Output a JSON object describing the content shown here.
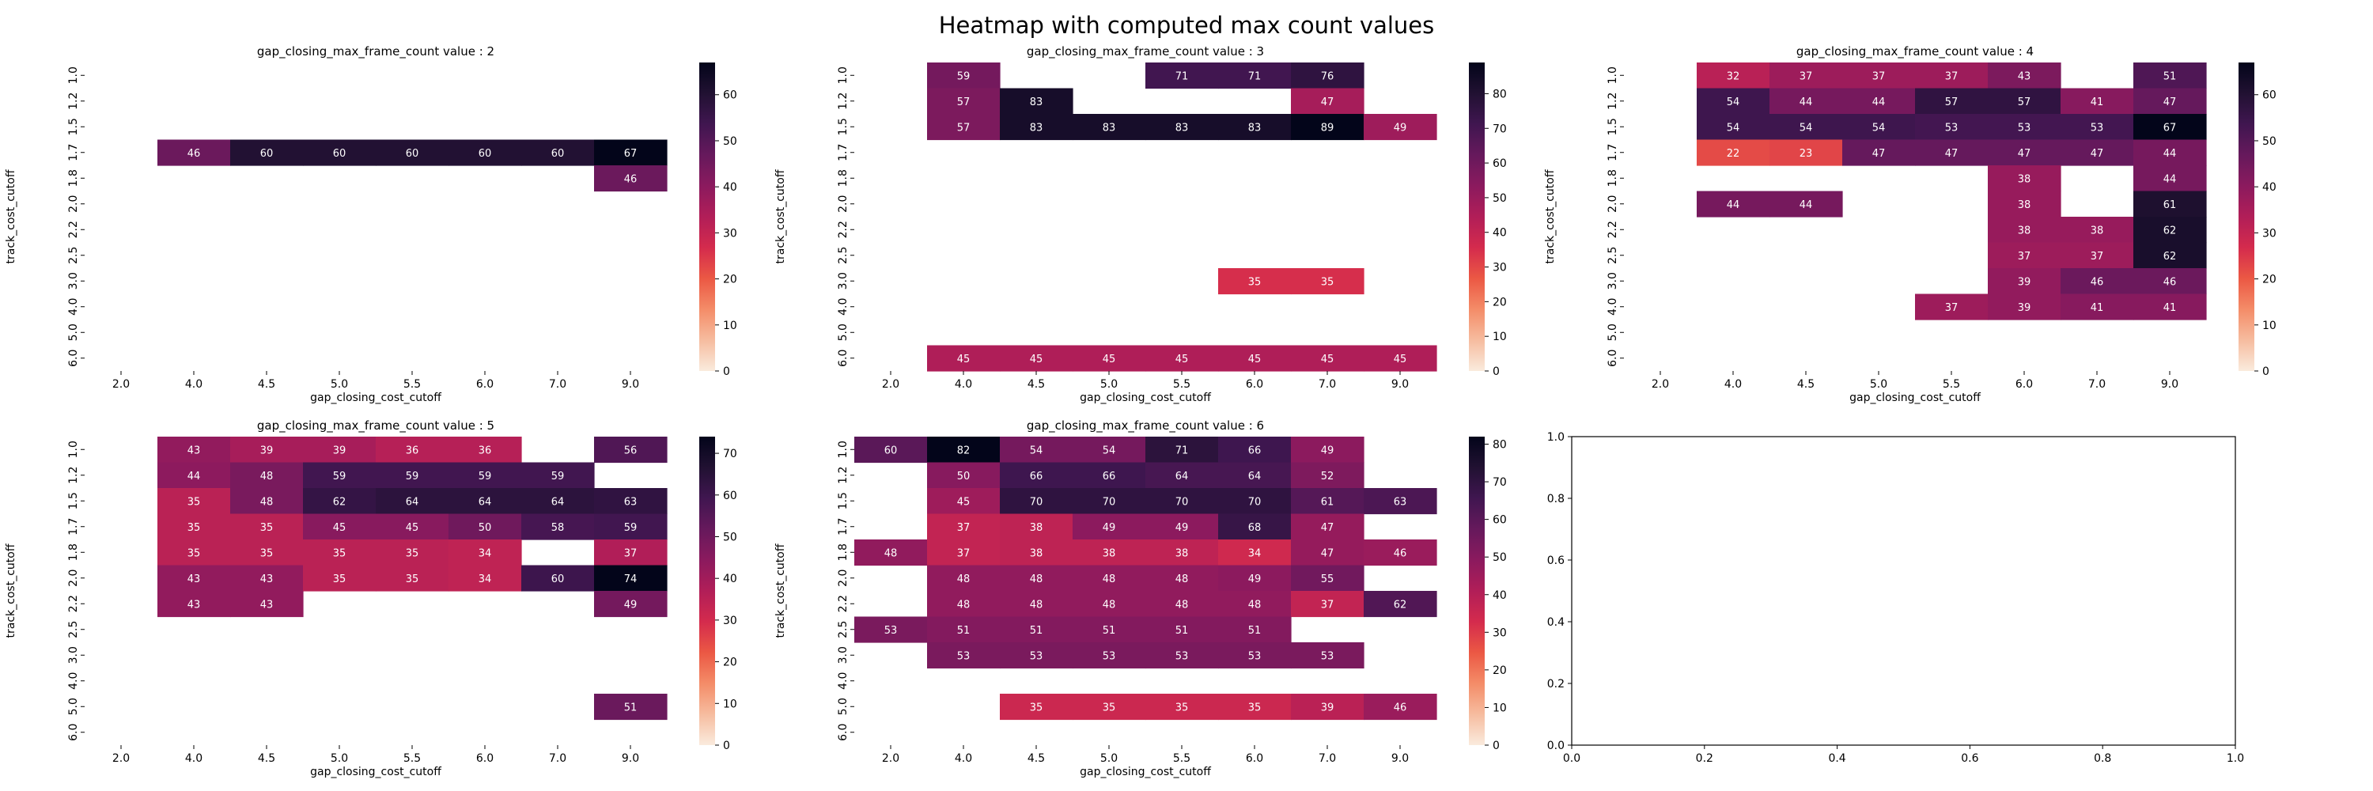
{
  "figure_title": "Heatmap with computed max count values",
  "chart_data": [
    {
      "type": "heatmap",
      "title": "gap_closing_max_frame_count value : 2",
      "xlabel": "gap_closing_cost_cutoff",
      "ylabel": "track_cost_cutoff",
      "x_ticks": [
        "2.0",
        "4.0",
        "4.5",
        "5.0",
        "5.5",
        "6.0",
        "7.0",
        "9.0"
      ],
      "y_ticks": [
        "1.0",
        "1.2",
        "1.5",
        "1.7",
        "1.8",
        "2.0",
        "2.2",
        "2.5",
        "3.0",
        "4.0",
        "5.0",
        "6.0"
      ],
      "colorbar_ticks": [
        0,
        10,
        20,
        30,
        40,
        50,
        60
      ],
      "vmin": 0,
      "vmax": 67,
      "values": [
        [
          null,
          null,
          null,
          null,
          null,
          null,
          null,
          null
        ],
        [
          null,
          null,
          null,
          null,
          null,
          null,
          null,
          null
        ],
        [
          null,
          null,
          null,
          null,
          null,
          null,
          null,
          null
        ],
        [
          null,
          46,
          60,
          60,
          60,
          60,
          60,
          67
        ],
        [
          null,
          null,
          null,
          null,
          null,
          null,
          null,
          46
        ],
        [
          null,
          null,
          null,
          null,
          null,
          null,
          null,
          null
        ],
        [
          null,
          null,
          null,
          null,
          null,
          null,
          null,
          null
        ],
        [
          null,
          null,
          null,
          null,
          null,
          null,
          null,
          null
        ],
        [
          null,
          null,
          null,
          null,
          null,
          null,
          null,
          null
        ],
        [
          null,
          null,
          null,
          null,
          null,
          null,
          null,
          null
        ],
        [
          null,
          null,
          null,
          null,
          null,
          null,
          null,
          null
        ],
        [
          null,
          null,
          null,
          null,
          null,
          null,
          null,
          null
        ]
      ]
    },
    {
      "type": "heatmap",
      "title": "gap_closing_max_frame_count value : 3",
      "xlabel": "gap_closing_cost_cutoff",
      "ylabel": "track_cost_cutoff",
      "x_ticks": [
        "2.0",
        "4.0",
        "4.5",
        "5.0",
        "5.5",
        "6.0",
        "7.0",
        "9.0"
      ],
      "y_ticks": [
        "1.0",
        "1.2",
        "1.5",
        "1.7",
        "1.8",
        "2.0",
        "2.2",
        "2.5",
        "3.0",
        "4.0",
        "5.0",
        "6.0"
      ],
      "colorbar_ticks": [
        0,
        10,
        20,
        30,
        40,
        50,
        60,
        70,
        80
      ],
      "vmin": 0,
      "vmax": 89,
      "values": [
        [
          null,
          59,
          null,
          null,
          71,
          71,
          76,
          null
        ],
        [
          null,
          57,
          83,
          null,
          null,
          null,
          47,
          null
        ],
        [
          null,
          57,
          83,
          83,
          83,
          83,
          89,
          49
        ],
        [
          null,
          null,
          null,
          null,
          null,
          null,
          null,
          null
        ],
        [
          null,
          null,
          null,
          null,
          null,
          null,
          null,
          null
        ],
        [
          null,
          null,
          null,
          null,
          null,
          null,
          null,
          null
        ],
        [
          null,
          null,
          null,
          null,
          null,
          null,
          null,
          null
        ],
        [
          null,
          null,
          null,
          null,
          null,
          null,
          null,
          null
        ],
        [
          null,
          null,
          null,
          null,
          null,
          35,
          35,
          null
        ],
        [
          null,
          null,
          null,
          null,
          null,
          null,
          null,
          null
        ],
        [
          null,
          null,
          null,
          null,
          null,
          null,
          null,
          null
        ],
        [
          null,
          45,
          45,
          45,
          45,
          45,
          45,
          45
        ]
      ]
    },
    {
      "type": "heatmap",
      "title": "gap_closing_max_frame_count value : 4",
      "xlabel": "gap_closing_cost_cutoff",
      "ylabel": "track_cost_cutoff",
      "x_ticks": [
        "2.0",
        "4.0",
        "4.5",
        "5.0",
        "5.5",
        "6.0",
        "7.0",
        "9.0"
      ],
      "y_ticks": [
        "1.0",
        "1.2",
        "1.5",
        "1.7",
        "1.8",
        "2.0",
        "2.2",
        "2.5",
        "3.0",
        "4.0",
        "5.0",
        "6.0"
      ],
      "colorbar_ticks": [
        0,
        10,
        20,
        30,
        40,
        50,
        60
      ],
      "vmin": 0,
      "vmax": 67,
      "values": [
        [
          null,
          32,
          37,
          37,
          37,
          43,
          null,
          51
        ],
        [
          null,
          54,
          44,
          44,
          57,
          57,
          41,
          47
        ],
        [
          null,
          54,
          54,
          54,
          53,
          53,
          53,
          67
        ],
        [
          null,
          22,
          23,
          47,
          47,
          47,
          47,
          44
        ],
        [
          null,
          null,
          null,
          null,
          null,
          38,
          null,
          44
        ],
        [
          null,
          44,
          44,
          null,
          null,
          38,
          null,
          61
        ],
        [
          null,
          null,
          null,
          null,
          null,
          38,
          38,
          62
        ],
        [
          null,
          null,
          null,
          null,
          null,
          37,
          37,
          62
        ],
        [
          null,
          null,
          null,
          null,
          null,
          39,
          46,
          46
        ],
        [
          null,
          null,
          null,
          null,
          37,
          39,
          41,
          41
        ],
        [
          null,
          null,
          null,
          null,
          null,
          null,
          null,
          null
        ],
        [
          null,
          null,
          null,
          null,
          null,
          null,
          null,
          null
        ]
      ]
    },
    {
      "type": "heatmap",
      "title": "gap_closing_max_frame_count value : 5",
      "xlabel": "gap_closing_cost_cutoff",
      "ylabel": "track_cost_cutoff",
      "x_ticks": [
        "2.0",
        "4.0",
        "4.5",
        "5.0",
        "5.5",
        "6.0",
        "7.0",
        "9.0"
      ],
      "y_ticks": [
        "1.0",
        "1.2",
        "1.5",
        "1.7",
        "1.8",
        "2.0",
        "2.2",
        "2.5",
        "3.0",
        "4.0",
        "5.0",
        "6.0"
      ],
      "colorbar_ticks": [
        0,
        10,
        20,
        30,
        40,
        50,
        60,
        70
      ],
      "vmin": 0,
      "vmax": 74,
      "values": [
        [
          null,
          43,
          39,
          39,
          36,
          36,
          null,
          56
        ],
        [
          null,
          44,
          48,
          59,
          59,
          59,
          59,
          null
        ],
        [
          null,
          35,
          48,
          62,
          64,
          64,
          64,
          63
        ],
        [
          null,
          35,
          35,
          45,
          45,
          50,
          58,
          59
        ],
        [
          null,
          35,
          35,
          35,
          35,
          34,
          null,
          37
        ],
        [
          null,
          43,
          43,
          35,
          35,
          34,
          60,
          74
        ],
        [
          null,
          43,
          43,
          null,
          null,
          null,
          null,
          49
        ],
        [
          null,
          null,
          null,
          null,
          null,
          null,
          null,
          null
        ],
        [
          null,
          null,
          null,
          null,
          null,
          null,
          null,
          null
        ],
        [
          null,
          null,
          null,
          null,
          null,
          null,
          null,
          null
        ],
        [
          null,
          null,
          null,
          null,
          null,
          null,
          null,
          51
        ],
        [
          null,
          null,
          null,
          null,
          null,
          null,
          null,
          null
        ]
      ]
    },
    {
      "type": "heatmap",
      "title": "gap_closing_max_frame_count value : 6",
      "xlabel": "gap_closing_cost_cutoff",
      "ylabel": "track_cost_cutoff",
      "x_ticks": [
        "2.0",
        "4.0",
        "4.5",
        "5.0",
        "5.5",
        "6.0",
        "7.0",
        "9.0"
      ],
      "y_ticks": [
        "1.0",
        "1.2",
        "1.5",
        "1.7",
        "1.8",
        "2.0",
        "2.2",
        "2.5",
        "3.0",
        "4.0",
        "5.0",
        "6.0"
      ],
      "colorbar_ticks": [
        0,
        10,
        20,
        30,
        40,
        50,
        60,
        70,
        80
      ],
      "vmin": 0,
      "vmax": 82,
      "values": [
        [
          60,
          82,
          54,
          54,
          71,
          66,
          49,
          null
        ],
        [
          null,
          50,
          66,
          66,
          64,
          64,
          52,
          null
        ],
        [
          null,
          45,
          70,
          70,
          70,
          70,
          61,
          63
        ],
        [
          null,
          37,
          38,
          49,
          49,
          68,
          47,
          null
        ],
        [
          48,
          37,
          38,
          38,
          38,
          34,
          47,
          46
        ],
        [
          null,
          48,
          48,
          48,
          48,
          49,
          55,
          null
        ],
        [
          null,
          48,
          48,
          48,
          48,
          48,
          37,
          62
        ],
        [
          53,
          51,
          51,
          51,
          51,
          51,
          null,
          null
        ],
        [
          null,
          53,
          53,
          53,
          53,
          53,
          53,
          null
        ],
        [
          null,
          null,
          null,
          null,
          null,
          null,
          null,
          null
        ],
        [
          null,
          null,
          35,
          35,
          35,
          35,
          39,
          46
        ],
        [
          null,
          null,
          null,
          null,
          null,
          null,
          null,
          null
        ]
      ]
    },
    {
      "type": "scatter",
      "title": "",
      "xlabel": "",
      "ylabel": "",
      "x_ticks": [
        "0.0",
        "0.2",
        "0.4",
        "0.6",
        "0.8",
        "1.0"
      ],
      "y_ticks": [
        "0.0",
        "0.2",
        "0.4",
        "0.6",
        "0.8",
        "1.0"
      ],
      "xlim": [
        0,
        1
      ],
      "ylim": [
        0,
        1
      ],
      "values": []
    }
  ]
}
